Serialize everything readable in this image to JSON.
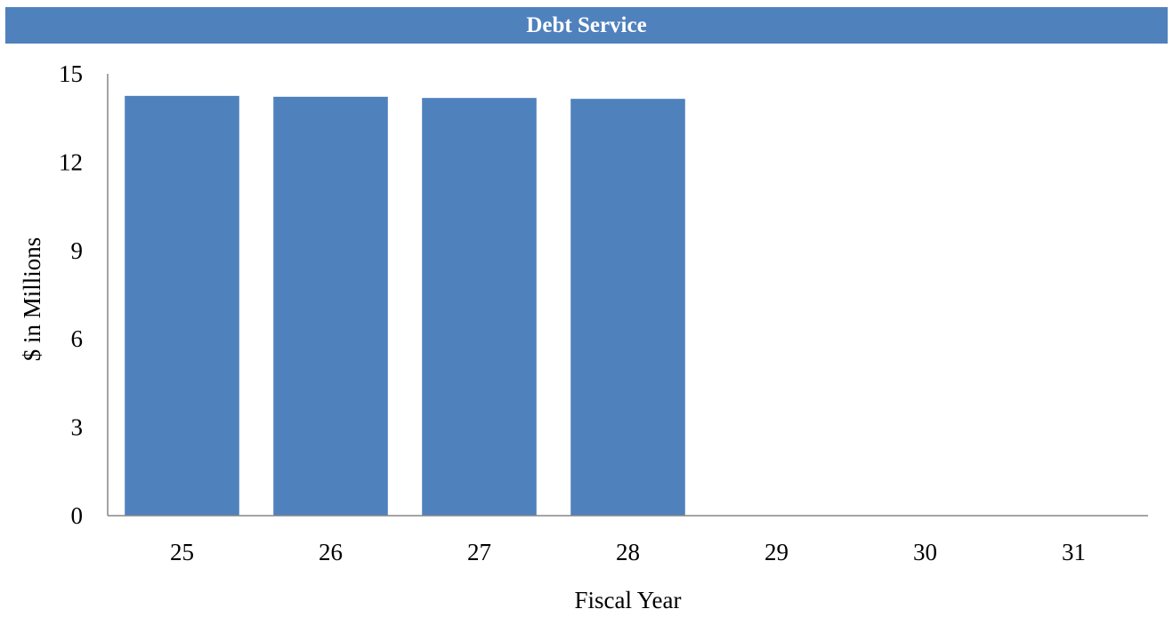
{
  "chart_data": {
    "type": "bar",
    "title": "Debt Service",
    "xlabel": "Fiscal Year",
    "ylabel": "$ in Millions",
    "categories": [
      "25",
      "26",
      "27",
      "28",
      "29",
      "30",
      "31"
    ],
    "values": [
      14.25,
      14.22,
      14.18,
      14.15,
      0,
      0,
      0
    ],
    "ylim": [
      0,
      15
    ],
    "yticks": [
      0,
      3,
      6,
      9,
      12,
      15
    ],
    "grid": false,
    "bar_color": "#4F81BD"
  }
}
